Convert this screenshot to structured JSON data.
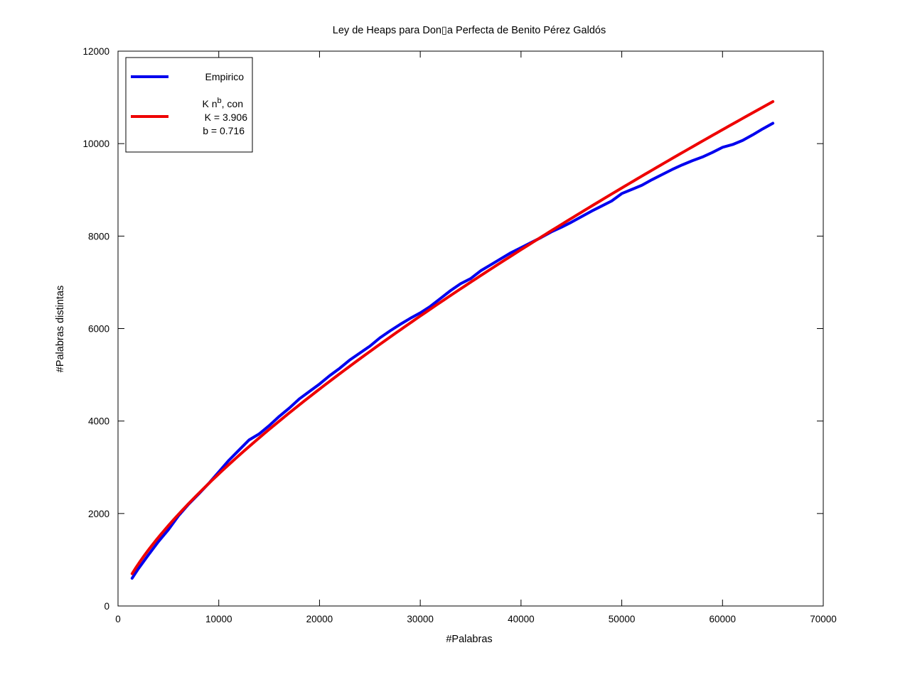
{
  "chart_data": {
    "type": "line",
    "title": "Ley de Heaps para Don▯a Perfecta de Benito Pérez Galdós",
    "xlabel": "#Palabras",
    "ylabel": "#Palabras distintas",
    "xlim": [
      0,
      70000
    ],
    "ylim": [
      0,
      12000
    ],
    "xticks": [
      "0",
      "10000",
      "20000",
      "30000",
      "40000",
      "50000",
      "60000",
      "70000"
    ],
    "yticks": [
      "0",
      "2000",
      "4000",
      "6000",
      "8000",
      "10000",
      "12000"
    ],
    "grid": false,
    "legend_position": "top-left",
    "legend": {
      "empirico": "Empirico",
      "fit_formula_base": "K n",
      "fit_formula_exp": "b",
      "fit_formula_tail": ", con",
      "fit_k": "K = 3.906",
      "fit_b": "b = 0.716"
    },
    "series": [
      {
        "name": "Empirico",
        "color": "#0000ee",
        "points": [
          [
            1400,
            600
          ],
          [
            2000,
            800
          ],
          [
            3000,
            1100
          ],
          [
            4000,
            1390
          ],
          [
            5000,
            1650
          ],
          [
            6000,
            1950
          ],
          [
            7000,
            2200
          ],
          [
            8000,
            2420
          ],
          [
            9000,
            2650
          ],
          [
            10000,
            2900
          ],
          [
            11000,
            3150
          ],
          [
            12000,
            3370
          ],
          [
            13000,
            3590
          ],
          [
            14000,
            3720
          ],
          [
            15000,
            3900
          ],
          [
            16000,
            4100
          ],
          [
            17000,
            4280
          ],
          [
            18000,
            4480
          ],
          [
            19000,
            4640
          ],
          [
            20000,
            4800
          ],
          [
            21000,
            4980
          ],
          [
            22000,
            5140
          ],
          [
            23000,
            5320
          ],
          [
            24000,
            5470
          ],
          [
            25000,
            5620
          ],
          [
            26000,
            5800
          ],
          [
            27000,
            5950
          ],
          [
            28000,
            6090
          ],
          [
            29000,
            6220
          ],
          [
            30000,
            6340
          ],
          [
            31000,
            6480
          ],
          [
            32000,
            6650
          ],
          [
            33000,
            6820
          ],
          [
            34000,
            6970
          ],
          [
            35000,
            7080
          ],
          [
            36000,
            7250
          ],
          [
            37000,
            7380
          ],
          [
            38000,
            7510
          ],
          [
            39000,
            7640
          ],
          [
            40000,
            7750
          ],
          [
            41000,
            7860
          ],
          [
            42000,
            7970
          ],
          [
            43000,
            8090
          ],
          [
            44000,
            8190
          ],
          [
            45000,
            8300
          ],
          [
            46000,
            8420
          ],
          [
            47000,
            8540
          ],
          [
            48000,
            8650
          ],
          [
            49000,
            8760
          ],
          [
            50000,
            8920
          ],
          [
            51000,
            9010
          ],
          [
            52000,
            9100
          ],
          [
            53000,
            9220
          ],
          [
            54000,
            9330
          ],
          [
            55000,
            9440
          ],
          [
            56000,
            9540
          ],
          [
            57000,
            9630
          ],
          [
            58000,
            9710
          ],
          [
            59000,
            9810
          ],
          [
            60000,
            9920
          ],
          [
            61000,
            9980
          ],
          [
            62000,
            10070
          ],
          [
            63000,
            10190
          ],
          [
            64000,
            10320
          ],
          [
            65000,
            10440
          ]
        ]
      },
      {
        "name": "K n^b, con K = 3.906 b = 0.716",
        "color": "#ee0000",
        "k": 3.906,
        "b": 0.716,
        "x_range": [
          1400,
          65000
        ]
      }
    ]
  }
}
